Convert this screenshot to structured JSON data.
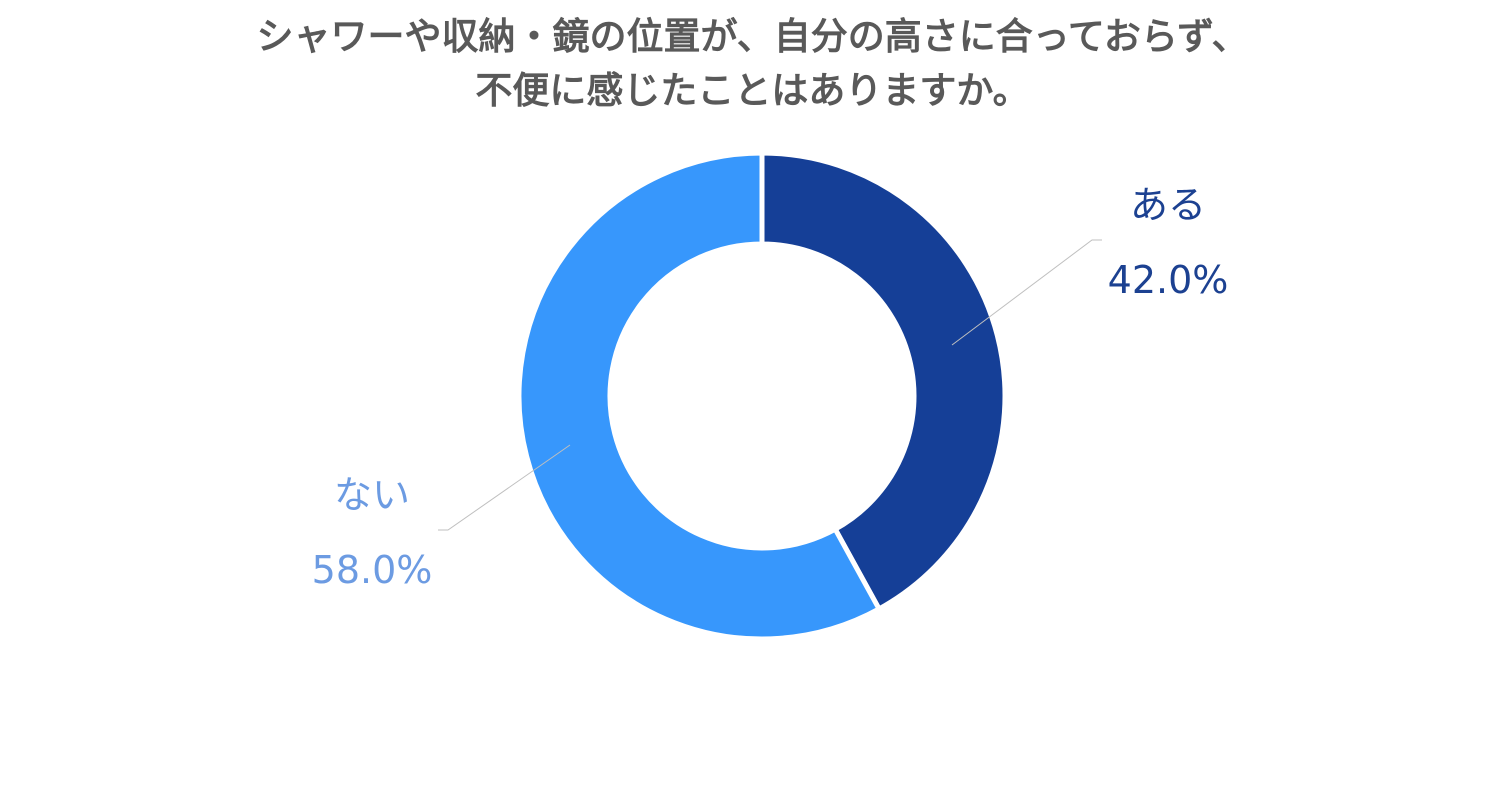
{
  "chart_data": {
    "type": "pie",
    "title_lines": [
      "シャワーや収納・鏡の位置が、自分の高さに合っておらず、",
      "不便に感じたことはありますか。"
    ],
    "categories": [
      "ある",
      "ない"
    ],
    "values": [
      42.0,
      58.0
    ],
    "value_labels": [
      "42.0%",
      "58.0%"
    ],
    "unit": "%",
    "colors": [
      "#153f97",
      "#3797fc"
    ],
    "label_colors": [
      "#1c4191",
      "#6c9be2"
    ],
    "style": "donut",
    "legend": "none"
  }
}
